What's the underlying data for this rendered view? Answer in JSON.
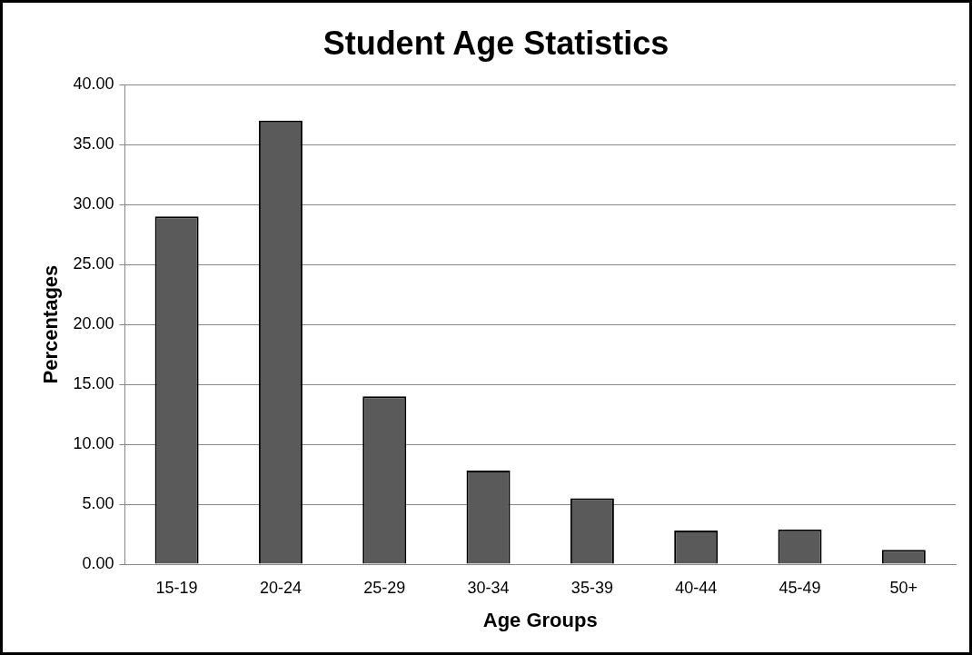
{
  "chart_data": {
    "type": "bar",
    "title": "Student Age Statistics",
    "xlabel": "Age Groups",
    "ylabel": "Percentages",
    "categories": [
      "15-19",
      "20-24",
      "25-29",
      "30-34",
      "35-39",
      "40-44",
      "45-49",
      "50+"
    ],
    "values": [
      29.0,
      37.0,
      14.0,
      7.8,
      5.5,
      2.8,
      2.9,
      1.2
    ],
    "color": "#5a5a5a",
    "ylim": [
      0,
      40
    ],
    "yticks": [
      {
        "value": 0,
        "label": "0.00"
      },
      {
        "value": 5,
        "label": "5.00"
      },
      {
        "value": 10,
        "label": "10.00"
      },
      {
        "value": 15,
        "label": "15.00"
      },
      {
        "value": 20,
        "label": "20.00"
      },
      {
        "value": 25,
        "label": "25.00"
      },
      {
        "value": 30,
        "label": "30.00"
      },
      {
        "value": 35,
        "label": "35.00"
      },
      {
        "value": 40,
        "label": "40.00"
      }
    ],
    "grid": "y",
    "legend": false
  }
}
